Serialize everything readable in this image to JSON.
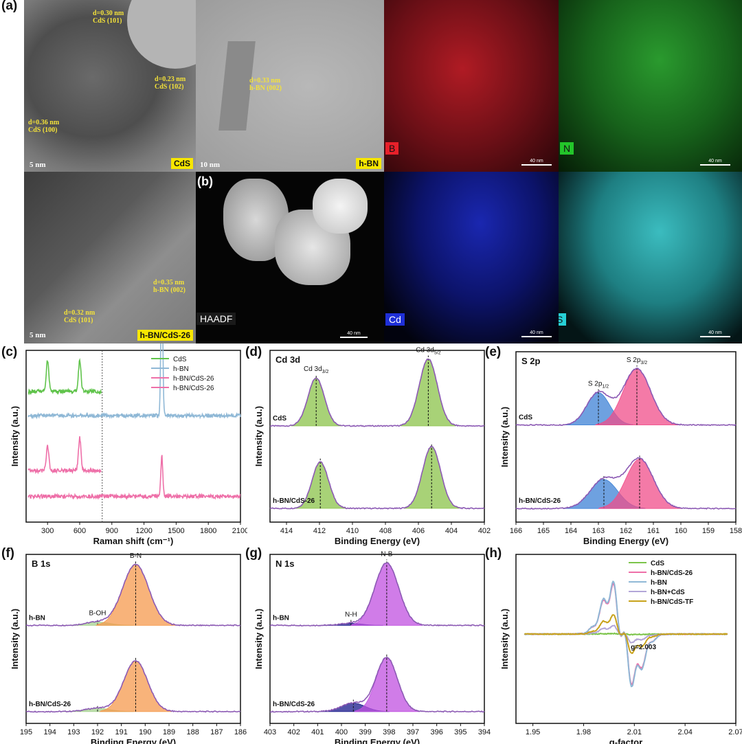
{
  "panel_labels": {
    "a": "(a)",
    "b": "(b)",
    "c": "(c)",
    "d": "(d)",
    "e": "(e)",
    "f": "(f)",
    "g": "(g)",
    "h": "(h)"
  },
  "micrographs": {
    "cds": {
      "tag": "CdS",
      "scale": "5 nm",
      "annotations": [
        {
          "d": "d=0.30 nm",
          "plane": "CdS (101)"
        },
        {
          "d": "d=0.23 nm",
          "plane": "CdS (102)"
        },
        {
          "d": "d=0.36 nm",
          "plane": "CdS (100)"
        }
      ]
    },
    "hbn": {
      "tag": "h-BN",
      "scale": "10 nm",
      "annotations": [
        {
          "d": "d=0.33 nm",
          "plane": "h-BN (002)"
        }
      ]
    },
    "composite": {
      "tag": "h-BN/CdS-26",
      "scale": "5 nm",
      "annotations": [
        {
          "d": "d=0.35 nm",
          "plane": "h-BN (002)"
        },
        {
          "d": "d=0.32 nm",
          "plane": "CdS (101)"
        }
      ]
    },
    "haadf": {
      "tag": "HAADF",
      "scale": "40 nm"
    }
  },
  "eds_maps": [
    {
      "element": "B",
      "color": "#e8202a",
      "scale": "40 nm"
    },
    {
      "element": "N",
      "color": "#23c52a",
      "scale": "40 nm"
    },
    {
      "element": "Cd",
      "color": "#1e2fd8",
      "scale": "40 nm"
    },
    {
      "element": "S",
      "color": "#26d0d6",
      "scale": "40 nm"
    }
  ],
  "chart_data": [
    {
      "id": "c",
      "type": "line",
      "xlabel": "Raman shift (cm⁻¹)",
      "ylabel": "Intensity (a.u.)",
      "xlim": [
        100,
        2100
      ],
      "xticks": [
        300,
        600,
        900,
        1200,
        1500,
        1800,
        2100
      ],
      "legend": [
        {
          "name": "CdS",
          "color": "#5fc34a"
        },
        {
          "name": "h-BN",
          "color": "#8fb8d6"
        },
        {
          "name": "h-BN/CdS-26",
          "color": "#ee6fa8"
        },
        {
          "name": "h-BN/CdS-26",
          "color": "#ee6fa8"
        }
      ],
      "series": [
        {
          "name": "CdS",
          "color": "#5fc34a",
          "baseline": 0.76,
          "peaks": [
            [
              300,
              0.18
            ],
            [
              600,
              0.18
            ]
          ],
          "x_range": [
            120,
            800
          ]
        },
        {
          "name": "h-BN",
          "color": "#8fb8d6",
          "baseline": 0.62,
          "peaks": [
            [
              1366,
              0.78
            ]
          ],
          "x_range": [
            120,
            2100
          ]
        },
        {
          "name": "h-BN/CdS-26",
          "color": "#ee6fa8",
          "baseline": 0.3,
          "peaks": [
            [
              300,
              0.14
            ],
            [
              600,
              0.19
            ]
          ],
          "x_range": [
            120,
            800
          ]
        },
        {
          "name": "h-BN/CdS-26",
          "color": "#ee6fa8",
          "baseline": 0.15,
          "peaks": [
            [
              1366,
              0.24
            ]
          ],
          "x_range": [
            120,
            2100
          ]
        }
      ],
      "divider_x": 810,
      "legend_position": "top-right"
    },
    {
      "id": "d",
      "type": "line",
      "title": "Cd 3d",
      "xlabel": "Binding Energy (eV)",
      "ylabel": "Intensity (a.u.)",
      "xlim": [
        415,
        402
      ],
      "xticks": [
        414,
        412,
        410,
        408,
        406,
        404,
        402
      ],
      "fill_color": "#8bc34a",
      "peak_labels": [
        {
          "text": "Cd 3d",
          "sub": "3/2",
          "x": 412.2
        },
        {
          "text": "Cd 3d",
          "sub": "5/2",
          "x": 405.4
        }
      ],
      "traces": [
        {
          "label": "CdS",
          "baseline": 0.56,
          "peaks": [
            {
              "x": 412.2,
              "h": 0.28,
              "w": 0.5
            },
            {
              "x": 405.4,
              "h": 0.39,
              "w": 0.55
            }
          ]
        },
        {
          "label": "h-BN/CdS-26",
          "baseline": 0.08,
          "peaks": [
            {
              "x": 411.95,
              "h": 0.27,
              "w": 0.5
            },
            {
              "x": 405.2,
              "h": 0.36,
              "w": 0.55
            }
          ]
        }
      ]
    },
    {
      "id": "e",
      "type": "line",
      "title": "S 2p",
      "xlabel": "Binding Energy (eV)",
      "ylabel": "Intensity (a.u.)",
      "xlim": [
        166,
        158
      ],
      "xticks": [
        166,
        165,
        164,
        163,
        162,
        161,
        160,
        159,
        158
      ],
      "peak_labels": [
        {
          "text": "S 2p",
          "sub": "1/2",
          "x": 163.0
        },
        {
          "text": "S 2p",
          "sub": "3/2",
          "x": 161.6
        }
      ],
      "traces": [
        {
          "label": "CdS",
          "baseline": 0.57,
          "peaks": [
            {
              "x": 163.0,
              "h": 0.19,
              "w": 0.42,
              "color": "#3d82d6"
            },
            {
              "x": 161.6,
              "h": 0.33,
              "w": 0.5,
              "color": "#f04e8a"
            }
          ]
        },
        {
          "label": "h-BN/CdS-26",
          "baseline": 0.08,
          "peaks": [
            {
              "x": 162.8,
              "h": 0.17,
              "w": 0.5,
              "color": "#3d82d6"
            },
            {
              "x": 161.5,
              "h": 0.29,
              "w": 0.5,
              "color": "#f04e8a"
            }
          ]
        }
      ]
    },
    {
      "id": "f",
      "type": "line",
      "title": "B 1s",
      "xlabel": "Binding Energy (eV)",
      "ylabel": "Intensity (a.u.)",
      "xlim": [
        195,
        186
      ],
      "xticks": [
        195,
        194,
        193,
        192,
        191,
        190,
        189,
        188,
        187,
        186
      ],
      "peak_labels": [
        {
          "text": "B-N",
          "x": 190.4
        },
        {
          "text": "B-OH",
          "x": 192.0
        }
      ],
      "traces": [
        {
          "label": "h-BN",
          "baseline": 0.58,
          "peaks": [
            {
              "x": 192.0,
              "h": 0.02,
              "w": 0.5,
              "color": "#a6d28f"
            },
            {
              "x": 190.4,
              "h": 0.36,
              "w": 0.55,
              "color": "#f59a4d"
            }
          ]
        },
        {
          "label": "h-BN/CdS-26",
          "baseline": 0.07,
          "peaks": [
            {
              "x": 192.0,
              "h": 0.02,
              "w": 0.5,
              "color": "#a6d28f"
            },
            {
              "x": 190.4,
              "h": 0.3,
              "w": 0.5,
              "color": "#f59a4d"
            }
          ]
        }
      ]
    },
    {
      "id": "g",
      "type": "line",
      "title": "N 1s",
      "xlabel": "Binding Energy (eV)",
      "ylabel": "Intensity (a.u.)",
      "xlim": [
        403,
        394
      ],
      "xticks": [
        403,
        402,
        401,
        400,
        399,
        398,
        397,
        396,
        395,
        394
      ],
      "peak_labels": [
        {
          "text": "N-B",
          "x": 398.1
        },
        {
          "text": "N-H",
          "x": 399.6
        }
      ],
      "traces": [
        {
          "label": "h-BN",
          "baseline": 0.58,
          "peaks": [
            {
              "x": 399.6,
              "h": 0.012,
              "w": 0.45,
              "color": "#1a1a8c"
            },
            {
              "x": 398.1,
              "h": 0.37,
              "w": 0.5,
              "color": "#c050e0"
            }
          ]
        },
        {
          "label": "h-BN/CdS-26",
          "baseline": 0.07,
          "peaks": [
            {
              "x": 399.5,
              "h": 0.05,
              "w": 0.5,
              "color": "#1a1a8c"
            },
            {
              "x": 398.1,
              "h": 0.32,
              "w": 0.45,
              "color": "#c050e0"
            }
          ]
        }
      ]
    },
    {
      "id": "h",
      "type": "line",
      "xlabel": "g-factor",
      "ylabel": "Intensity (a.u.)",
      "xlim": [
        1.94,
        2.07
      ],
      "xticks": [
        1.95,
        1.98,
        2.01,
        2.04,
        2.07
      ],
      "annotation": "g=2.003",
      "series": [
        {
          "name": "CdS",
          "color": "#7cc44a",
          "amp": 0.01
        },
        {
          "name": "h-BN/CdS-26",
          "color": "#ee6fa8",
          "amp": 1.0
        },
        {
          "name": "h-BN",
          "color": "#8fb8d6",
          "amp": 1.04
        },
        {
          "name": "h-BN+CdS",
          "color": "#b3a6d8",
          "amp": 0.17
        },
        {
          "name": "h-BN/CdS-TF",
          "color": "#c8a21a",
          "amp": 0.38
        }
      ],
      "legend_position": "top-right"
    }
  ]
}
